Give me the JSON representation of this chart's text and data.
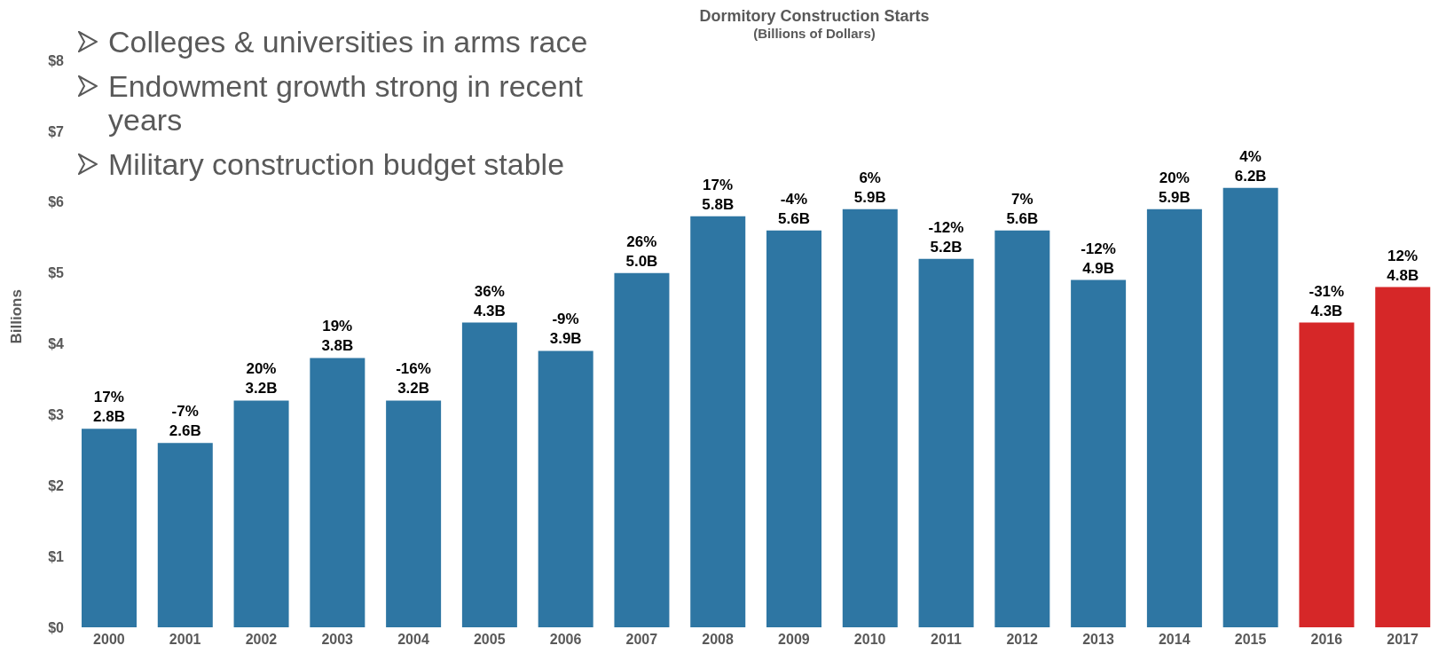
{
  "chart_data": {
    "type": "bar",
    "title": "Dormitory Construction Starts",
    "subtitle": "(Billions of Dollars)",
    "ylabel": "Billions",
    "annotations": [
      "Colleges & universities in arms race",
      "Endowment growth strong in recent years",
      "Military construction budget stable",
      {
        "text": "17%",
        "x": "2000",
        "y": 2.8
      },
      {
        "text": "-7%",
        "x": "2001",
        "y": 2.6
      },
      {
        "text": "20%",
        "x": "2002",
        "y": 3.2
      },
      {
        "text": "19%",
        "x": "2003",
        "y": 3.8
      },
      {
        "text": "-16%",
        "x": "2004",
        "y": 3.2
      },
      {
        "text": "36%",
        "x": "2005",
        "y": 4.3
      },
      {
        "text": "-9%",
        "x": "2006",
        "y": 3.9
      },
      {
        "text": "26%",
        "x": "2007",
        "y": 5.0
      },
      {
        "text": "17%",
        "x": "2008",
        "y": 5.8
      },
      {
        "text": "-4%",
        "x": "2009",
        "y": 5.6
      },
      {
        "text": "6%",
        "x": "2010",
        "y": 5.9
      },
      {
        "text": "-12%",
        "x": "2011",
        "y": 5.2
      },
      {
        "text": "7%",
        "x": "2012",
        "y": 5.6
      },
      {
        "text": "-12%",
        "x": "2013",
        "y": 4.9
      },
      {
        "text": "20%",
        "x": "2014",
        "y": 5.9
      },
      {
        "text": "4%",
        "x": "2015",
        "y": 6.2
      },
      {
        "text": "-31%",
        "x": "2016",
        "y": 4.3
      },
      {
        "text": "12%",
        "x": "2017",
        "y": 4.8
      }
    ],
    "categories": [
      "2000",
      "2001",
      "2002",
      "2003",
      "2004",
      "2005",
      "2006",
      "2007",
      "2008",
      "2009",
      "2010",
      "2011",
      "2012",
      "2013",
      "2014",
      "2015",
      "2016",
      "2017"
    ],
    "values": [
      2.8,
      2.6,
      3.2,
      3.8,
      3.2,
      4.3,
      3.9,
      5.0,
      5.8,
      5.6,
      5.9,
      5.2,
      5.6,
      4.9,
      5.9,
      6.2,
      4.3,
      4.8
    ],
    "colors": [
      "#2e76a3",
      "#2e76a3",
      "#2e76a3",
      "#2e76a3",
      "#2e76a3",
      "#2e76a3",
      "#2e76a3",
      "#2e76a3",
      "#2e76a3",
      "#2e76a3",
      "#2e76a3",
      "#2e76a3",
      "#2e76a3",
      "#2e76a3",
      "#2e76a3",
      "#2e76a3",
      "#d62728",
      "#d62728"
    ],
    "value_labels": [
      "2.8B",
      "2.6B",
      "3.2B",
      "3.8B",
      "3.2B",
      "4.3B",
      "3.9B",
      "5.0B",
      "5.8B",
      "5.6B",
      "5.9B",
      "5.2B",
      "5.6B",
      "4.9B",
      "5.9B",
      "6.2B",
      "4.3B",
      "4.8B"
    ],
    "ylim": [
      0,
      8
    ],
    "yticks": [
      {
        "value": 0,
        "label": "$0"
      },
      {
        "value": 1,
        "label": "$1"
      },
      {
        "value": 2,
        "label": "$2"
      },
      {
        "value": 3,
        "label": "$3"
      },
      {
        "value": 4,
        "label": "$4"
      },
      {
        "value": 5,
        "label": "$5"
      },
      {
        "value": 6,
        "label": "$6"
      },
      {
        "value": 7,
        "label": "$7"
      },
      {
        "value": 8,
        "label": "$8"
      }
    ],
    "grid": false,
    "legend": false
  }
}
